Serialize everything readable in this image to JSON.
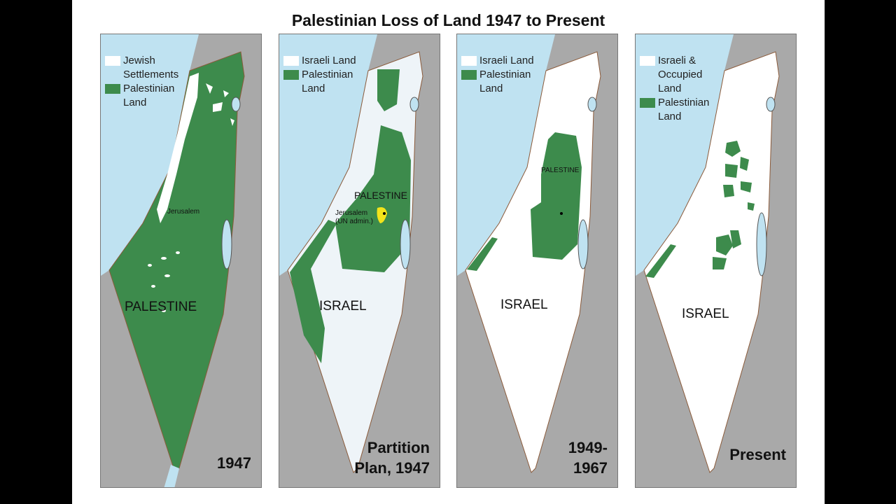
{
  "title": "Palestinian Loss of Land 1947 to Present",
  "colors": {
    "palestinian_land": "#3d8b4c",
    "israeli_land": "#ffffff",
    "sea": "#bfe2f1",
    "neighbors": "#a9a9a9",
    "jerusalem_un": "#f2e31b"
  },
  "panels": [
    {
      "legend": [
        "Jewish Settlements",
        "Palestinian Land"
      ],
      "map_labels": {
        "main": "PALESTINE",
        "city": "Jerusalem"
      },
      "caption": [
        "1947"
      ]
    },
    {
      "legend": [
        "Israeli Land",
        "Palestinian Land"
      ],
      "map_labels": {
        "palestine": "PALESTINE",
        "israel": "ISRAEL",
        "city": "Jerusalem",
        "city_note": "(UN admin.)"
      },
      "caption": [
        "Partition",
        "Plan, 1947"
      ]
    },
    {
      "legend": [
        "Israeli Land",
        "Palestinian Land"
      ],
      "map_labels": {
        "palestine": "PALESTINE",
        "israel": "ISRAEL"
      },
      "caption": [
        "1949-",
        "1967"
      ]
    },
    {
      "legend": [
        "Israeli & Occupied Land",
        "Palestinian Land"
      ],
      "map_labels": {
        "israel": "ISRAEL"
      },
      "caption": [
        "Present"
      ]
    }
  ]
}
